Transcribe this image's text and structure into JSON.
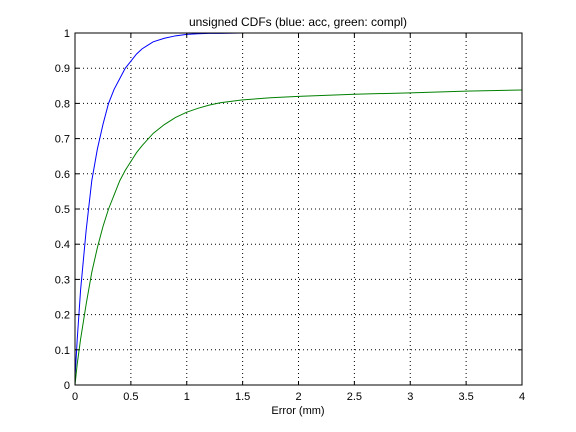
{
  "chart_data": {
    "type": "line",
    "title": "unsigned CDFs (blue: acc, green: compl)",
    "xlabel": "Error (mm)",
    "ylabel": "",
    "xlim": [
      0,
      4
    ],
    "ylim": [
      0,
      1
    ],
    "grid": true,
    "xticks": [
      0,
      0.5,
      1,
      1.5,
      2,
      2.5,
      3,
      3.5,
      4
    ],
    "xtick_labels": [
      "0",
      "0.5",
      "1",
      "1.5",
      "2",
      "2.5",
      "3",
      "3.5",
      "4"
    ],
    "yticks": [
      0,
      0.1,
      0.2,
      0.3,
      0.4,
      0.5,
      0.6,
      0.7,
      0.8,
      0.9,
      1
    ],
    "ytick_labels": [
      "0",
      "0.1",
      "0.2",
      "0.3",
      "0.4",
      "0.5",
      "0.6",
      "0.7",
      "0.8",
      "0.9",
      "1"
    ],
    "series": [
      {
        "color": "#0000ff",
        "x": [
          0,
          0.02,
          0.05,
          0.1,
          0.15,
          0.2,
          0.25,
          0.3,
          0.35,
          0.4,
          0.45,
          0.5,
          0.55,
          0.6,
          0.65,
          0.7,
          0.8,
          0.9,
          1.0,
          1.1,
          1.2,
          1.3,
          1.5,
          2.0,
          2.5,
          3.0,
          3.5,
          4.0
        ],
        "y": [
          0.02,
          0.13,
          0.27,
          0.44,
          0.58,
          0.67,
          0.74,
          0.8,
          0.84,
          0.87,
          0.9,
          0.92,
          0.94,
          0.955,
          0.965,
          0.975,
          0.985,
          0.992,
          0.996,
          0.998,
          0.999,
          0.999,
          1.0,
          1.0,
          1.0,
          1.0,
          1.0,
          1.0
        ]
      },
      {
        "color": "#008000",
        "x": [
          0,
          0.02,
          0.05,
          0.1,
          0.15,
          0.2,
          0.25,
          0.3,
          0.35,
          0.4,
          0.45,
          0.5,
          0.55,
          0.6,
          0.7,
          0.8,
          0.9,
          1.0,
          1.1,
          1.2,
          1.3,
          1.5,
          1.75,
          2.0,
          2.5,
          3.0,
          3.5,
          4.0
        ],
        "y": [
          0.0,
          0.06,
          0.13,
          0.23,
          0.32,
          0.39,
          0.45,
          0.5,
          0.54,
          0.58,
          0.61,
          0.635,
          0.66,
          0.68,
          0.715,
          0.74,
          0.76,
          0.775,
          0.786,
          0.795,
          0.802,
          0.81,
          0.816,
          0.82,
          0.826,
          0.83,
          0.835,
          0.838
        ]
      }
    ]
  }
}
